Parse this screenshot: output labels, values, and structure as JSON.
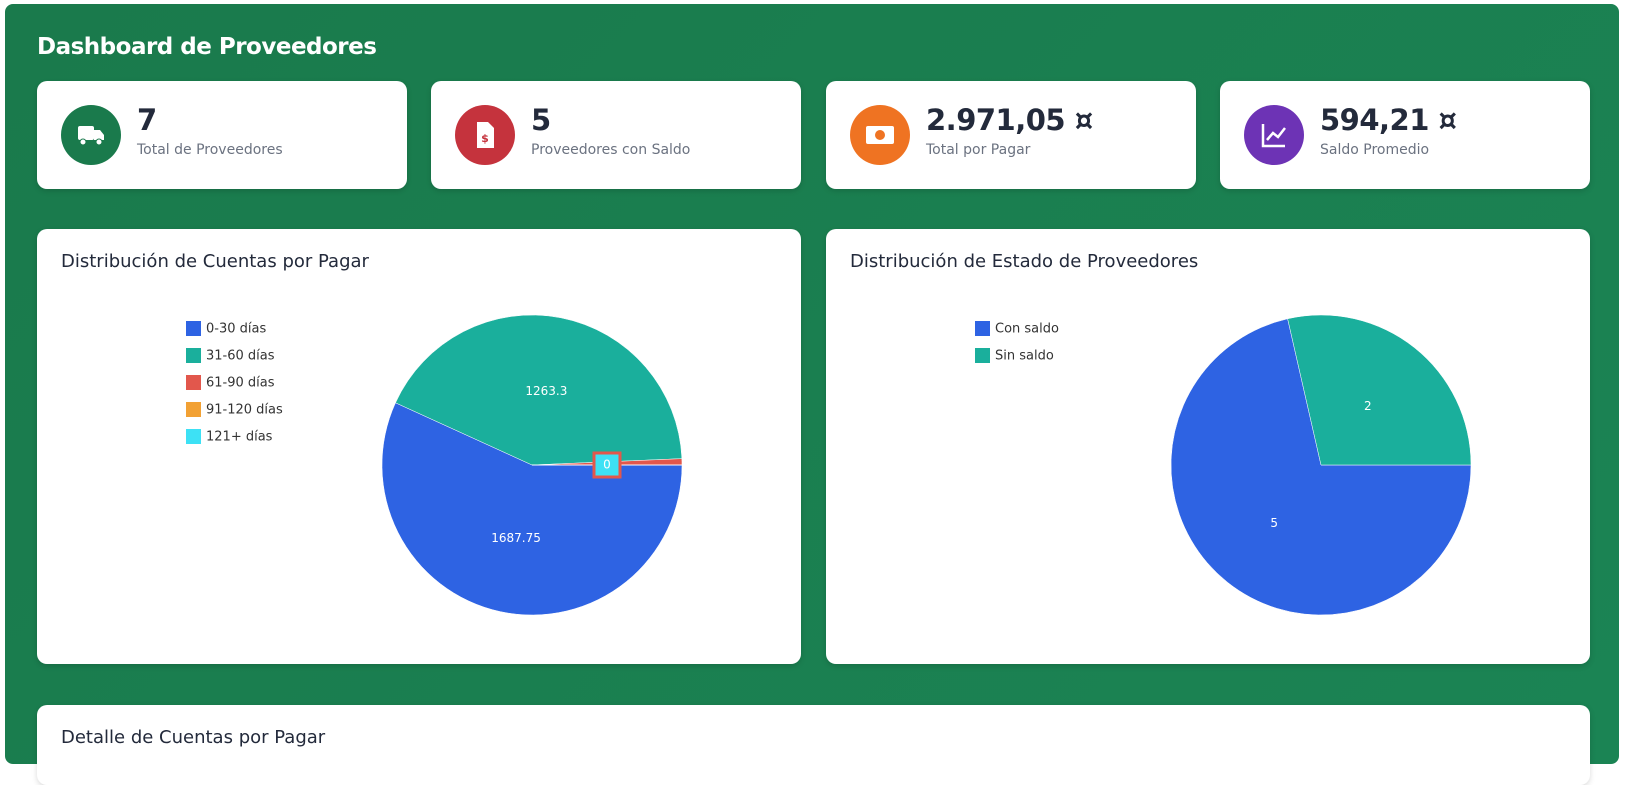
{
  "header": {
    "title": "Dashboard de Proveedores"
  },
  "cards": [
    {
      "value": "7",
      "label": "Total de Proveedores"
    },
    {
      "value": "5",
      "label": "Proveedores con Saldo"
    },
    {
      "value": "2.971,05 ¤",
      "label": "Total por Pagar"
    },
    {
      "value": "594,21 ¤",
      "label": "Saldo Promedio"
    }
  ],
  "chart_data": [
    {
      "type": "pie",
      "title": "Distribución de Cuentas por Pagar",
      "categories": [
        "0-30 días",
        "31-60 días",
        "61-90 días",
        "91-120 días",
        "121+ días"
      ],
      "values": [
        1687.75,
        1263.3,
        20,
        0,
        0
      ],
      "value_labels": [
        "1687.75",
        "1263.3",
        null,
        null,
        "0"
      ],
      "colors": [
        "#2e63e3",
        "#1aaf9c",
        "#e2574c",
        "#f2a134",
        "#3de1f5"
      ]
    },
    {
      "type": "pie",
      "title": "Distribución de Estado de Proveedores",
      "categories": [
        "Con saldo",
        "Sin saldo"
      ],
      "values": [
        5,
        2
      ],
      "value_labels": [
        "5",
        "2"
      ],
      "colors": [
        "#2e63e3",
        "#1aaf9c"
      ]
    }
  ],
  "detail": {
    "title": "Detalle de Cuentas por Pagar"
  }
}
